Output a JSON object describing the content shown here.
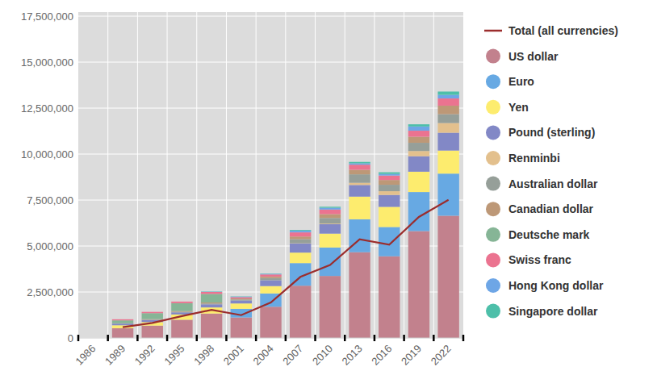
{
  "chart_data": {
    "type": "bar",
    "stacked": true,
    "grid": true,
    "legend": "right",
    "categories": [
      "1986",
      "1989",
      "1992",
      "1995",
      "1998",
      "2001",
      "2004",
      "2007",
      "2010",
      "2013",
      "2016",
      "2019",
      "2022"
    ],
    "ylim": [
      0,
      17500000
    ],
    "yticks": [
      0,
      {
        "value": 2500000,
        "label": "2,500,000"
      },
      {
        "value": 5000000,
        "label": "5,000,000"
      },
      {
        "value": 7500000,
        "label": "7,500,000"
      },
      {
        "value": 10000000,
        "label": "10,000,000"
      },
      {
        "value": 12500000,
        "label": "12,500,000"
      },
      {
        "value": 15000000,
        "label": "15,000,000"
      },
      {
        "value": 17500000,
        "label": "17,500,000"
      }
    ],
    "series": [
      {
        "name": "Total (all currencies)",
        "type": "line",
        "color": "#9b2d2d",
        "values": [
          null,
          590000,
          820000,
          1190000,
          1530000,
          1240000,
          1930000,
          3320000,
          3970000,
          5360000,
          5070000,
          6580000,
          7510000
        ]
      },
      {
        "name": "US dollar",
        "color": "#c2818d",
        "values": [
          null,
          531000,
          672000,
          991000,
          1328000,
          1115000,
          1698000,
          2842000,
          3371000,
          4663000,
          4441000,
          5810000,
          6646000
        ]
      },
      {
        "name": "Euro",
        "color": "#67a9e3",
        "values": [
          null,
          null,
          null,
          null,
          null,
          470000,
          722000,
          1228000,
          1548000,
          1790000,
          1592000,
          2125000,
          2291000
        ]
      },
      {
        "name": "Yen",
        "color": "#fdec6e",
        "values": [
          null,
          159000,
          192000,
          287000,
          332000,
          291000,
          401000,
          571000,
          754000,
          1233000,
          1095000,
          1105000,
          1254000
        ]
      },
      {
        "name": "Pound (sterling)",
        "color": "#8288c6",
        "values": [
          null,
          89000,
          112000,
          112000,
          168000,
          161000,
          318000,
          495000,
          512000,
          632000,
          649000,
          842000,
          969000
        ]
      },
      {
        "name": "Renminbi",
        "color": "#e3c08d",
        "values": [
          null,
          null,
          null,
          null,
          null,
          0,
          2000,
          17000,
          36000,
          118000,
          203000,
          283000,
          526000
        ]
      },
      {
        "name": "Australian dollar",
        "color": "#969f99",
        "values": [
          null,
          12000,
          21000,
          32000,
          46000,
          53000,
          116000,
          219000,
          302000,
          461000,
          350000,
          447000,
          481000
        ]
      },
      {
        "name": "Canadian dollar",
        "color": "#bd9877",
        "values": [
          null,
          6000,
          27000,
          40000,
          54000,
          56000,
          81000,
          143000,
          210000,
          247000,
          259000,
          329000,
          466000
        ]
      },
      {
        "name": "Deutsche mark",
        "color": "#86b596",
        "values": [
          null,
          159000,
          325000,
          430000,
          467000,
          null,
          null,
          null,
          null,
          null,
          null,
          null,
          null
        ]
      },
      {
        "name": "Swiss franc",
        "color": "#eb7390",
        "values": [
          null,
          59000,
          69000,
          87000,
          109000,
          74000,
          116000,
          226000,
          250000,
          279000,
          243000,
          329000,
          391000
        ]
      },
      {
        "name": "Hong Kong dollar",
        "color": "#6ea6e6",
        "values": [
          null,
          null,
          null,
          null,
          15000,
          27000,
          35000,
          90000,
          95000,
          75000,
          86000,
          230000,
          195000
        ]
      },
      {
        "name": "Singapore dollar",
        "color": "#4dbfa9",
        "values": [
          null,
          null,
          null,
          null,
          17000,
          14000,
          17000,
          40000,
          56000,
          75000,
          91000,
          118000,
          180000
        ]
      }
    ]
  }
}
